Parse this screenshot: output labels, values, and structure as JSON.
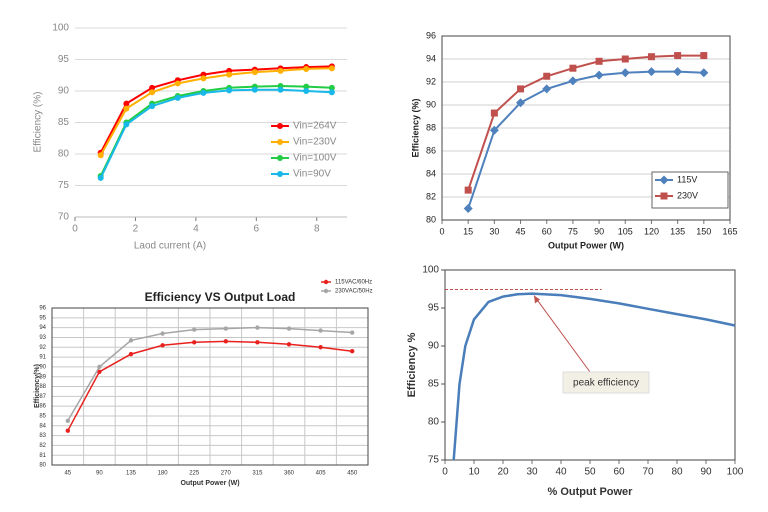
{
  "chart_data": [
    {
      "type": "line",
      "xlabel": "Laod current (A)",
      "ylabel": "Efficiency (%)",
      "x": [
        0.85,
        1.7,
        2.55,
        3.4,
        4.25,
        5.1,
        5.95,
        6.8,
        7.65,
        8.5
      ],
      "series": [
        {
          "name": "Vin=264V",
          "color": "#ff0000",
          "values": [
            80.2,
            88,
            90.5,
            91.7,
            92.6,
            93.2,
            93.4,
            93.6,
            93.8,
            93.9
          ]
        },
        {
          "name": "Vin=230V",
          "color": "#ffb000",
          "values": [
            79.8,
            87.2,
            89.8,
            91.2,
            92,
            92.6,
            93,
            93.2,
            93.5,
            93.6
          ]
        },
        {
          "name": "Vin=100V",
          "color": "#22cc44",
          "values": [
            76.5,
            85,
            88,
            89.2,
            90,
            90.5,
            90.7,
            90.8,
            90.7,
            90.5
          ]
        },
        {
          "name": "Vin=90V",
          "color": "#18b8e8",
          "values": [
            76.2,
            84.7,
            87.6,
            88.9,
            89.7,
            90.1,
            90.2,
            90.2,
            90,
            89.8
          ]
        }
      ],
      "xlim": [
        0,
        9
      ],
      "xticks": [
        0,
        2,
        4,
        6,
        8
      ],
      "ylim": [
        70,
        100
      ],
      "yticks": [
        70,
        75,
        80,
        85,
        90,
        95,
        100
      ],
      "grid": true
    },
    {
      "type": "line",
      "xlabel": "Output Power (W)",
      "ylabel": "Efficiency (%)",
      "x": [
        15,
        30,
        45,
        60,
        75,
        90,
        105,
        120,
        135,
        150
      ],
      "series": [
        {
          "name": "115V",
          "color": "#4f81bd",
          "values": [
            81,
            87.8,
            90.2,
            91.4,
            92.1,
            92.6,
            92.8,
            92.9,
            92.9,
            92.8
          ]
        },
        {
          "name": "230V",
          "color": "#c0504d",
          "values": [
            82.6,
            89.3,
            91.4,
            92.5,
            93.2,
            93.8,
            94,
            94.2,
            94.3,
            94.3
          ]
        }
      ],
      "xlim": [
        0,
        165
      ],
      "xticks": [
        0,
        15,
        30,
        45,
        60,
        75,
        90,
        105,
        120,
        135,
        150,
        165
      ],
      "ylim": [
        80,
        96
      ],
      "yticks": [
        80,
        82,
        84,
        86,
        88,
        90,
        92,
        94,
        96
      ],
      "grid": true
    },
    {
      "type": "line",
      "title": "Efficiency VS Output Load",
      "xlabel": "Output Power (W)",
      "ylabel": "Efficiency(%)",
      "categories": [
        "45",
        "90",
        "135",
        "180",
        "225",
        "270",
        "315",
        "360",
        "405",
        "450"
      ],
      "series": [
        {
          "name": "115VAC/60Hz",
          "color": "#e8211e",
          "values": [
            83.5,
            89.5,
            91.3,
            92.2,
            92.5,
            92.6,
            92.5,
            92.3,
            92,
            91.6
          ]
        },
        {
          "name": "230VAC/50Hz",
          "color": "#a6a6a6",
          "values": [
            84.5,
            90,
            92.7,
            93.4,
            93.8,
            93.9,
            94,
            93.9,
            93.7,
            93.5
          ]
        }
      ],
      "ylim": [
        80,
        96
      ],
      "yticks": [
        80,
        81,
        82,
        83,
        84,
        85,
        86,
        87,
        88,
        89,
        90,
        91,
        92,
        93,
        94,
        95,
        96
      ],
      "grid": true
    },
    {
      "type": "line",
      "xlabel": "% Output Power",
      "ylabel": "Efficiency %",
      "annotation": "peak efficiency",
      "x": [
        3,
        5,
        7,
        10,
        15,
        20,
        25,
        30,
        40,
        50,
        60,
        70,
        80,
        90,
        100
      ],
      "values": [
        75,
        85,
        90,
        93.5,
        95.8,
        96.5,
        96.8,
        96.9,
        96.7,
        96.2,
        95.6,
        94.9,
        94.2,
        93.5,
        92.7
      ],
      "color": "#4a7ebb",
      "xlim": [
        0,
        100
      ],
      "xticks": [
        0,
        10,
        20,
        30,
        40,
        50,
        60,
        70,
        80,
        90,
        100
      ],
      "ylim": [
        75,
        100
      ],
      "yticks": [
        75,
        80,
        85,
        90,
        95,
        100
      ],
      "grid": false
    }
  ]
}
